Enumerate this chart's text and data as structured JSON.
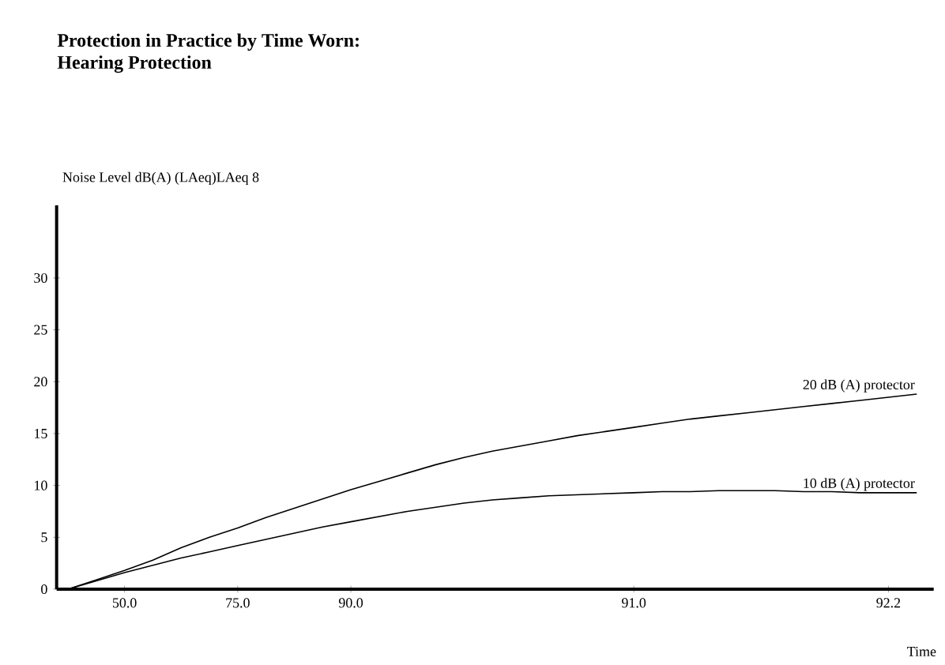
{
  "chart_data": {
    "type": "line",
    "title": "Protection in  Practice by Time Worn:\nHearing Protection",
    "ylabel": "Noise Level    dB(A) (LAeq)LAeq 8",
    "xlabel": "Time",
    "categories": [
      null,
      null,
      "50.0",
      null,
      null,
      null,
      "75.0",
      null,
      null,
      null,
      "90.0",
      null,
      null,
      null,
      null,
      null,
      null,
      null,
      null,
      null,
      "91.0",
      null,
      null,
      null,
      null,
      null,
      null,
      null,
      null,
      "92.2",
      null
    ],
    "ylim": [
      0,
      37
    ],
    "yticks": [
      0,
      5,
      10,
      15,
      20,
      25,
      30
    ],
    "series": [
      {
        "name": "20 dB (A) protector",
        "color": "#000000",
        "values": [
          0,
          0.9,
          1.8,
          2.8,
          4.0,
          5.0,
          5.9,
          6.9,
          7.8,
          8.7,
          9.6,
          10.4,
          11.2,
          12.0,
          12.7,
          13.3,
          13.8,
          14.3,
          14.8,
          15.2,
          15.6,
          16.0,
          16.4,
          16.7,
          17.0,
          17.3,
          17.6,
          17.9,
          18.2,
          18.5,
          18.8
        ]
      },
      {
        "name": "10 dB (A) protector",
        "color": "#000000",
        "values": [
          0,
          0.8,
          1.6,
          2.3,
          3.0,
          3.6,
          4.2,
          4.8,
          5.4,
          6.0,
          6.5,
          7.0,
          7.5,
          7.9,
          8.3,
          8.6,
          8.8,
          9.0,
          9.1,
          9.2,
          9.3,
          9.4,
          9.4,
          9.5,
          9.5,
          9.5,
          9.4,
          9.4,
          9.3,
          9.3,
          9.3
        ]
      }
    ],
    "line_style": "solid",
    "marker": "none"
  }
}
